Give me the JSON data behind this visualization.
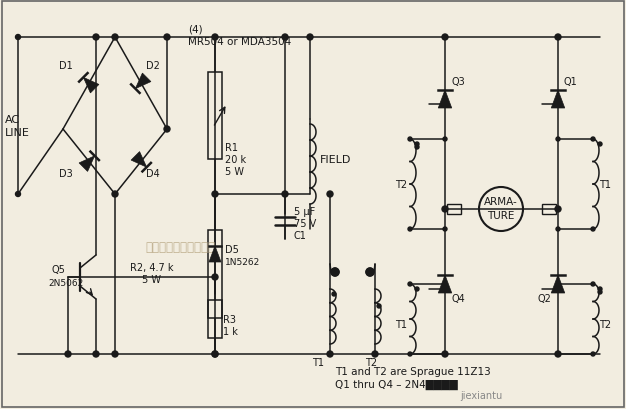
{
  "background_color": "#f2ede0",
  "line_color": "#1a1a1a",
  "text_color": "#1a1a1a",
  "watermark_text": "杭州格睢科技有限公司",
  "note1": "T1 and T2 are Sprague 11Z13",
  "note2": "Q1 thru Q4 – 2N4████",
  "website": "jiexiantu",
  "fig_width": 6.26,
  "fig_height": 4.1,
  "dpi": 100
}
